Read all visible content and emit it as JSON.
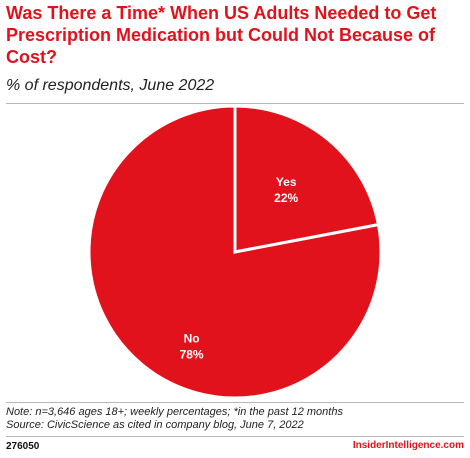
{
  "header": {
    "title": "Was There a Time* When US Adults Needed to Get Prescription Medication but Could Not Because of Cost?",
    "subtitle": "% of respondents, June 2022"
  },
  "footer": {
    "note": "Note: n=3,646 ages 18+; weekly percentages; *in the past 12 months",
    "source": "Source: CivicScience as cited in company blog, June 7, 2022",
    "chart_id": "276050",
    "brand": "InsiderIntelligence.com"
  },
  "colors": {
    "accent": "#e2121c",
    "slice_edge": "#ffffff"
  },
  "chart_data": {
    "type": "pie",
    "title": "Was There a Time* When US Adults Needed to Get Prescription Medication but Could Not Because of Cost?",
    "subtitle": "% of respondents, June 2022",
    "categories": [
      "Yes",
      "No"
    ],
    "values": [
      22,
      78
    ],
    "value_labels": [
      "22%",
      "78%"
    ],
    "unit": "%"
  }
}
